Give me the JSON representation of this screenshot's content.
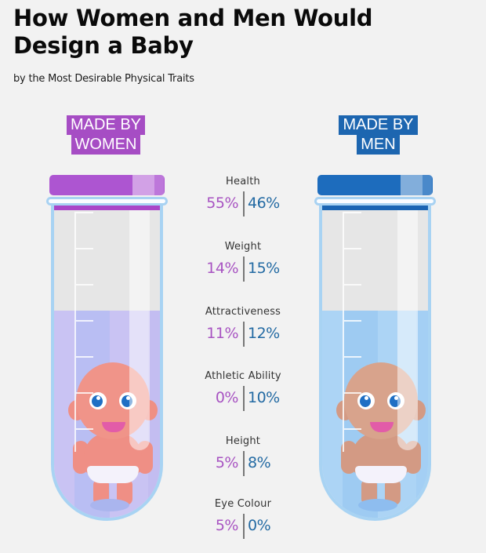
{
  "header": {
    "title": "How Women and Men Would Design a Baby",
    "subtitle": "by the Most Desirable Physical Traits"
  },
  "labels": {
    "women": "MADE BY WOMEN",
    "men": "MADE BY MEN"
  },
  "colors": {
    "women": "#a854c2",
    "men": "#236aa3",
    "women_cap": "#ad55d1",
    "men_cap": "#1d6cbd"
  },
  "traits": [
    {
      "name": "Health",
      "women": "55%",
      "men": "46%"
    },
    {
      "name": "Weight",
      "women": "14%",
      "men": "15%"
    },
    {
      "name": "Attractiveness",
      "women": "11%",
      "men": "12%"
    },
    {
      "name": "Athletic Ability",
      "women": "0%",
      "men": "10%"
    },
    {
      "name": "Height",
      "women": "5%",
      "men": "8%"
    },
    {
      "name": "Eye Colour",
      "women": "5%",
      "men": "0%"
    }
  ],
  "chart_data": {
    "type": "bar",
    "title": "How Women and Men Would Design a Baby",
    "subtitle": "by the Most Desirable Physical Traits",
    "categories": [
      "Health",
      "Weight",
      "Attractiveness",
      "Athletic Ability",
      "Height",
      "Eye Colour"
    ],
    "series": [
      {
        "name": "Made by Women",
        "values": [
          55,
          14,
          11,
          0,
          5,
          5
        ],
        "color": "#a854c2"
      },
      {
        "name": "Made by Men",
        "values": [
          46,
          15,
          12,
          10,
          8,
          0
        ],
        "color": "#236aa3"
      }
    ],
    "unit": "%",
    "xlabel": "",
    "ylabel": "",
    "legend_position": "top"
  }
}
